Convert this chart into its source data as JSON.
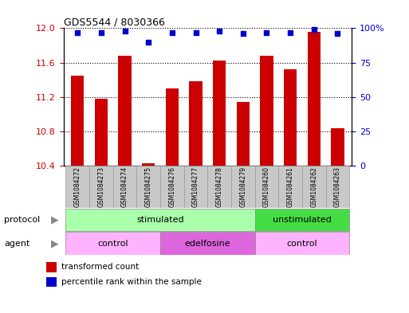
{
  "title": "GDS5544 / 8030366",
  "samples": [
    "GSM1084272",
    "GSM1084273",
    "GSM1084274",
    "GSM1084275",
    "GSM1084276",
    "GSM1084277",
    "GSM1084278",
    "GSM1084279",
    "GSM1084260",
    "GSM1084261",
    "GSM1084262",
    "GSM1084263"
  ],
  "bar_values": [
    11.45,
    11.18,
    11.68,
    10.43,
    11.3,
    11.38,
    11.62,
    11.14,
    11.68,
    11.52,
    11.96,
    10.84
  ],
  "percentile_values": [
    97,
    97,
    98,
    90,
    97,
    97,
    98,
    96,
    97,
    97,
    99,
    96
  ],
  "ylim": [
    10.4,
    12.0
  ],
  "y2lim": [
    0,
    100
  ],
  "yticks": [
    10.4,
    10.8,
    11.2,
    11.6,
    12.0
  ],
  "y2ticks": [
    0,
    25,
    50,
    75,
    100
  ],
  "bar_color": "#CC0000",
  "dot_color": "#0000CC",
  "protocol_groups": [
    {
      "label": "stimulated",
      "start": 0,
      "end": 8,
      "color": "#AAFFAA"
    },
    {
      "label": "unstimulated",
      "start": 8,
      "end": 12,
      "color": "#44DD44"
    }
  ],
  "agent_groups": [
    {
      "label": "control",
      "start": 0,
      "end": 4,
      "color": "#FFB3FF"
    },
    {
      "label": "edelfosine",
      "start": 4,
      "end": 8,
      "color": "#DD66DD"
    },
    {
      "label": "control",
      "start": 8,
      "end": 12,
      "color": "#FFB3FF"
    }
  ],
  "legend_items": [
    {
      "label": "transformed count",
      "color": "#CC0000"
    },
    {
      "label": "percentile rank within the sample",
      "color": "#0000CC"
    }
  ],
  "bg_color": "#FFFFFF",
  "grid_color": "#000000",
  "tick_label_color_left": "#CC0000",
  "tick_label_color_right": "#0000CC",
  "bar_width": 0.55,
  "sample_box_color": "#C8C8C8",
  "sample_box_edge": "#999999"
}
